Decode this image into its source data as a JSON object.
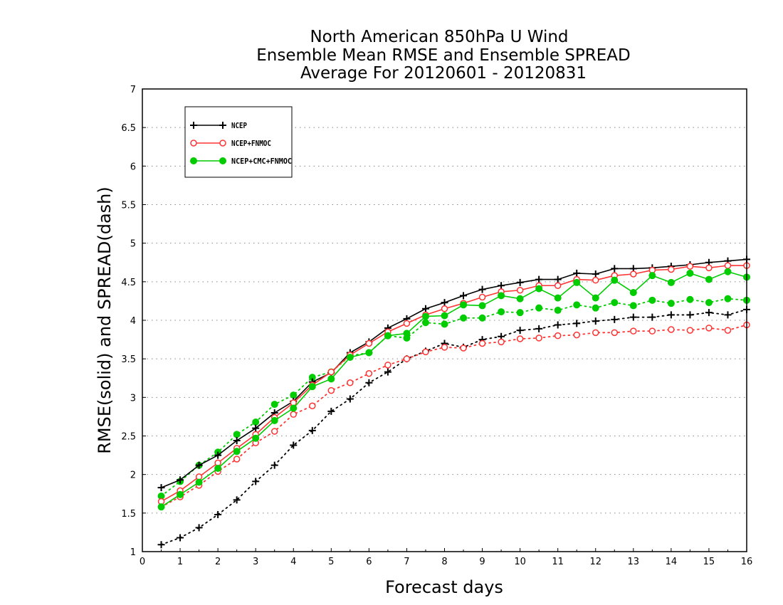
{
  "chart_data": {
    "type": "line",
    "title_lines": [
      "North American 850hPa U Wind",
      "Ensemble Mean RMSE and Ensemble SPREAD",
      "Average For 20120601 - 20120831"
    ],
    "xlabel": "Forecast days",
    "ylabel": "RMSE(solid) and SPREAD(dash)",
    "xlim": [
      0,
      16
    ],
    "ylim": [
      1,
      7
    ],
    "x_ticks": [
      "0",
      "1",
      "2",
      "3",
      "4",
      "5",
      "6",
      "7",
      "8",
      "9",
      "10",
      "11",
      "12",
      "13",
      "14",
      "15",
      "16"
    ],
    "y_ticks": [
      "1",
      "1.5",
      "2",
      "2.5",
      "3",
      "3.5",
      "4",
      "4.5",
      "5",
      "5.5",
      "6",
      "6.5",
      "7"
    ],
    "grid": "horizontal dotted",
    "legend_position": "top-left",
    "x": [
      0.5,
      1,
      1.5,
      2,
      2.5,
      3,
      3.5,
      4,
      4.5,
      5,
      5.5,
      6,
      6.5,
      7,
      7.5,
      8,
      8.5,
      9,
      9.5,
      10,
      10.5,
      11,
      11.5,
      12,
      12.5,
      13,
      13.5,
      14,
      14.5,
      15,
      15.5,
      16
    ],
    "series": [
      {
        "name": "NCEP",
        "color": "#000000",
        "marker": "plus",
        "rmse": [
          1.83,
          1.93,
          2.12,
          2.25,
          2.44,
          2.6,
          2.8,
          2.95,
          3.2,
          3.32,
          3.58,
          3.72,
          3.9,
          4.02,
          4.15,
          4.23,
          4.32,
          4.4,
          4.45,
          4.49,
          4.53,
          4.53,
          4.61,
          4.6,
          4.67,
          4.67,
          4.68,
          4.7,
          4.72,
          4.75,
          4.77,
          4.79
        ],
        "spread": [
          1.09,
          1.18,
          1.31,
          1.48,
          1.67,
          1.91,
          2.12,
          2.38,
          2.57,
          2.82,
          2.98,
          3.19,
          3.33,
          3.5,
          3.6,
          3.7,
          3.65,
          3.75,
          3.79,
          3.87,
          3.89,
          3.94,
          3.96,
          3.99,
          4.01,
          4.04,
          4.04,
          4.07,
          4.07,
          4.1,
          4.07,
          4.14
        ]
      },
      {
        "name": "NCEP+FNMOC",
        "color": "#ff3333",
        "marker": "circle-open",
        "rmse": [
          1.65,
          1.79,
          1.97,
          2.15,
          2.34,
          2.52,
          2.74,
          2.93,
          3.16,
          3.33,
          3.55,
          3.7,
          3.85,
          3.96,
          4.07,
          4.15,
          4.22,
          4.3,
          4.37,
          4.39,
          4.45,
          4.45,
          4.53,
          4.52,
          4.58,
          4.6,
          4.65,
          4.66,
          4.7,
          4.68,
          4.71,
          4.71
        ],
        "spread": [
          1.58,
          1.71,
          1.86,
          2.04,
          2.2,
          2.41,
          2.56,
          2.78,
          2.89,
          3.09,
          3.19,
          3.31,
          3.42,
          3.5,
          3.59,
          3.65,
          3.64,
          3.7,
          3.72,
          3.76,
          3.77,
          3.8,
          3.81,
          3.84,
          3.84,
          3.86,
          3.86,
          3.88,
          3.87,
          3.9,
          3.87,
          3.94
        ]
      },
      {
        "name": "NCEP+CMC+FNMOC",
        "color": "#00cc00",
        "marker": "circle-filled",
        "rmse": [
          1.58,
          1.74,
          1.9,
          2.08,
          2.3,
          2.47,
          2.7,
          2.86,
          3.14,
          3.24,
          3.52,
          3.58,
          3.8,
          3.83,
          4.05,
          4.06,
          4.2,
          4.19,
          4.32,
          4.28,
          4.41,
          4.29,
          4.49,
          4.29,
          4.52,
          4.36,
          4.58,
          4.49,
          4.61,
          4.53,
          4.63,
          4.56
        ],
        "spread": [
          1.72,
          1.91,
          2.12,
          2.29,
          2.52,
          2.68,
          2.91,
          3.03,
          3.26,
          3.33,
          3.54,
          3.58,
          3.8,
          3.77,
          3.97,
          3.95,
          4.03,
          4.03,
          4.11,
          4.1,
          4.16,
          4.13,
          4.2,
          4.16,
          4.23,
          4.19,
          4.26,
          4.22,
          4.27,
          4.23,
          4.28,
          4.26
        ]
      }
    ]
  }
}
